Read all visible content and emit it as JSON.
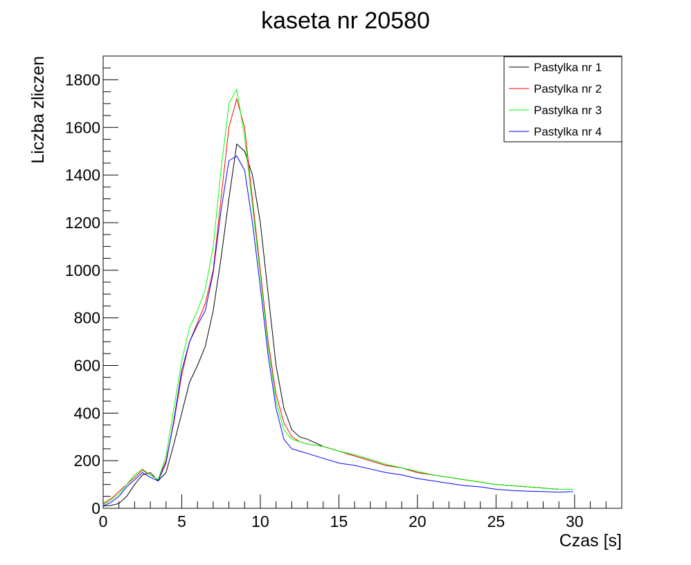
{
  "chart_data": {
    "type": "line",
    "title": "kaseta nr 20580",
    "xlabel": "Czas [s]",
    "ylabel": "Liczba zliczen",
    "xlim": [
      0,
      33
    ],
    "ylim": [
      0,
      1900
    ],
    "x_ticks": [
      0,
      5,
      10,
      15,
      20,
      25,
      30
    ],
    "y_ticks": [
      0,
      200,
      400,
      600,
      800,
      1000,
      1200,
      1400,
      1600,
      1800
    ],
    "x_minor_step": 1,
    "y_minor_step": 50,
    "grid": false,
    "legend_position": "top-right",
    "x": [
      0,
      0.5,
      1,
      1.5,
      2,
      2.5,
      3,
      3.5,
      4,
      4.5,
      5,
      5.5,
      6,
      6.5,
      7,
      7.5,
      8,
      8.5,
      9,
      9.5,
      10,
      10.5,
      11,
      11.5,
      12,
      12.5,
      13,
      14,
      15,
      16,
      17,
      18,
      19,
      20,
      21,
      22,
      23,
      24,
      25,
      26,
      27,
      28,
      29,
      29.9
    ],
    "series": [
      {
        "name": "Pastylka nr 1",
        "color": "#000000",
        "values": [
          10,
          12,
          20,
          50,
          100,
          140,
          150,
          115,
          150,
          270,
          400,
          530,
          600,
          680,
          830,
          1050,
          1300,
          1530,
          1500,
          1400,
          1200,
          900,
          600,
          420,
          330,
          300,
          290,
          260,
          240,
          220,
          200,
          180,
          170,
          150,
          140,
          130,
          120,
          110,
          100,
          95,
          90,
          85,
          80,
          80
        ]
      },
      {
        "name": "Pastylka nr 2",
        "color": "#ff0000",
        "values": [
          20,
          40,
          70,
          100,
          130,
          160,
          140,
          120,
          200,
          360,
          560,
          700,
          780,
          860,
          1000,
          1300,
          1600,
          1720,
          1600,
          1300,
          1000,
          700,
          480,
          360,
          300,
          280,
          270,
          260,
          240,
          220,
          200,
          180,
          170,
          150,
          140,
          130,
          120,
          110,
          100,
          95,
          90,
          85,
          80,
          80
        ]
      },
      {
        "name": "Pastylka nr 3",
        "color": "#00ff00",
        "values": [
          15,
          35,
          60,
          100,
          140,
          165,
          140,
          120,
          220,
          420,
          620,
          760,
          830,
          920,
          1100,
          1420,
          1700,
          1760,
          1560,
          1270,
          980,
          680,
          450,
          330,
          290,
          280,
          270,
          260,
          240,
          225,
          205,
          185,
          170,
          155,
          140,
          130,
          120,
          110,
          100,
          95,
          90,
          85,
          80,
          80
        ]
      },
      {
        "name": "Pastylka nr 4",
        "color": "#0000ff",
        "values": [
          10,
          25,
          50,
          90,
          120,
          150,
          130,
          115,
          190,
          370,
          580,
          700,
          770,
          830,
          990,
          1250,
          1460,
          1480,
          1420,
          1200,
          930,
          640,
          420,
          290,
          250,
          240,
          230,
          210,
          190,
          180,
          165,
          150,
          140,
          125,
          115,
          105,
          95,
          90,
          80,
          75,
          72,
          70,
          68,
          70
        ]
      }
    ]
  }
}
